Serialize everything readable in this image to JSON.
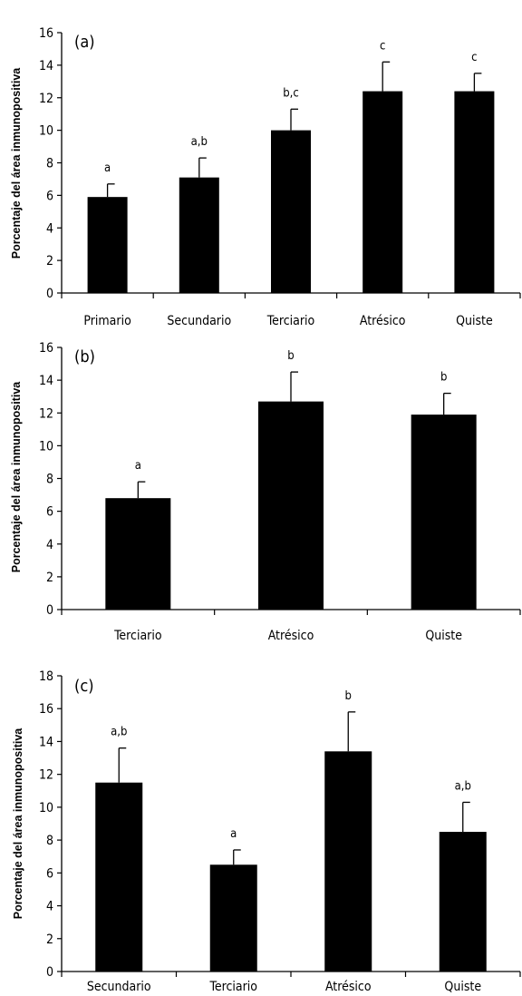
{
  "chart_data": [
    {
      "type": "bar",
      "panel_label": "(a)",
      "ylabel": "Porcentaje del área inmunopositiva",
      "ylim": [
        0,
        16
      ],
      "yticks": [
        0,
        2,
        4,
        6,
        8,
        10,
        12,
        14,
        16
      ],
      "categories": [
        "Primario",
        "Secundario",
        "Terciario",
        "Atrésico",
        "Quiste"
      ],
      "values": [
        5.9,
        7.1,
        10.0,
        12.4,
        12.4
      ],
      "errors": [
        0.8,
        1.2,
        1.3,
        1.8,
        1.1
      ],
      "significance": [
        "a",
        "a,b",
        "b,c",
        "c",
        "c"
      ],
      "bar_color": "#000000"
    },
    {
      "type": "bar",
      "panel_label": "(b)",
      "ylabel": "Porcentaje del área inmunopositiva",
      "ylim": [
        0,
        16
      ],
      "yticks": [
        0,
        2,
        4,
        6,
        8,
        10,
        12,
        14,
        16
      ],
      "categories": [
        "Terciario",
        "Atrésico",
        "Quiste"
      ],
      "values": [
        6.8,
        12.7,
        11.9
      ],
      "errors": [
        1.0,
        1.8,
        1.3
      ],
      "significance": [
        "a",
        "b",
        "b"
      ],
      "bar_color": "#000000"
    },
    {
      "type": "bar",
      "panel_label": "(c)",
      "ylabel": "Porcentaje del área inmunopositiva",
      "ylim": [
        0,
        18
      ],
      "yticks": [
        0,
        2,
        4,
        6,
        8,
        10,
        12,
        14,
        16,
        18
      ],
      "categories": [
        "Secundario",
        "Terciario",
        "Atrésico",
        "Quiste"
      ],
      "values": [
        11.5,
        6.5,
        13.4,
        8.5
      ],
      "errors": [
        2.1,
        0.9,
        2.4,
        1.8
      ],
      "significance": [
        "a,b",
        "a",
        "b",
        "a,b"
      ],
      "bar_color": "#000000"
    }
  ]
}
